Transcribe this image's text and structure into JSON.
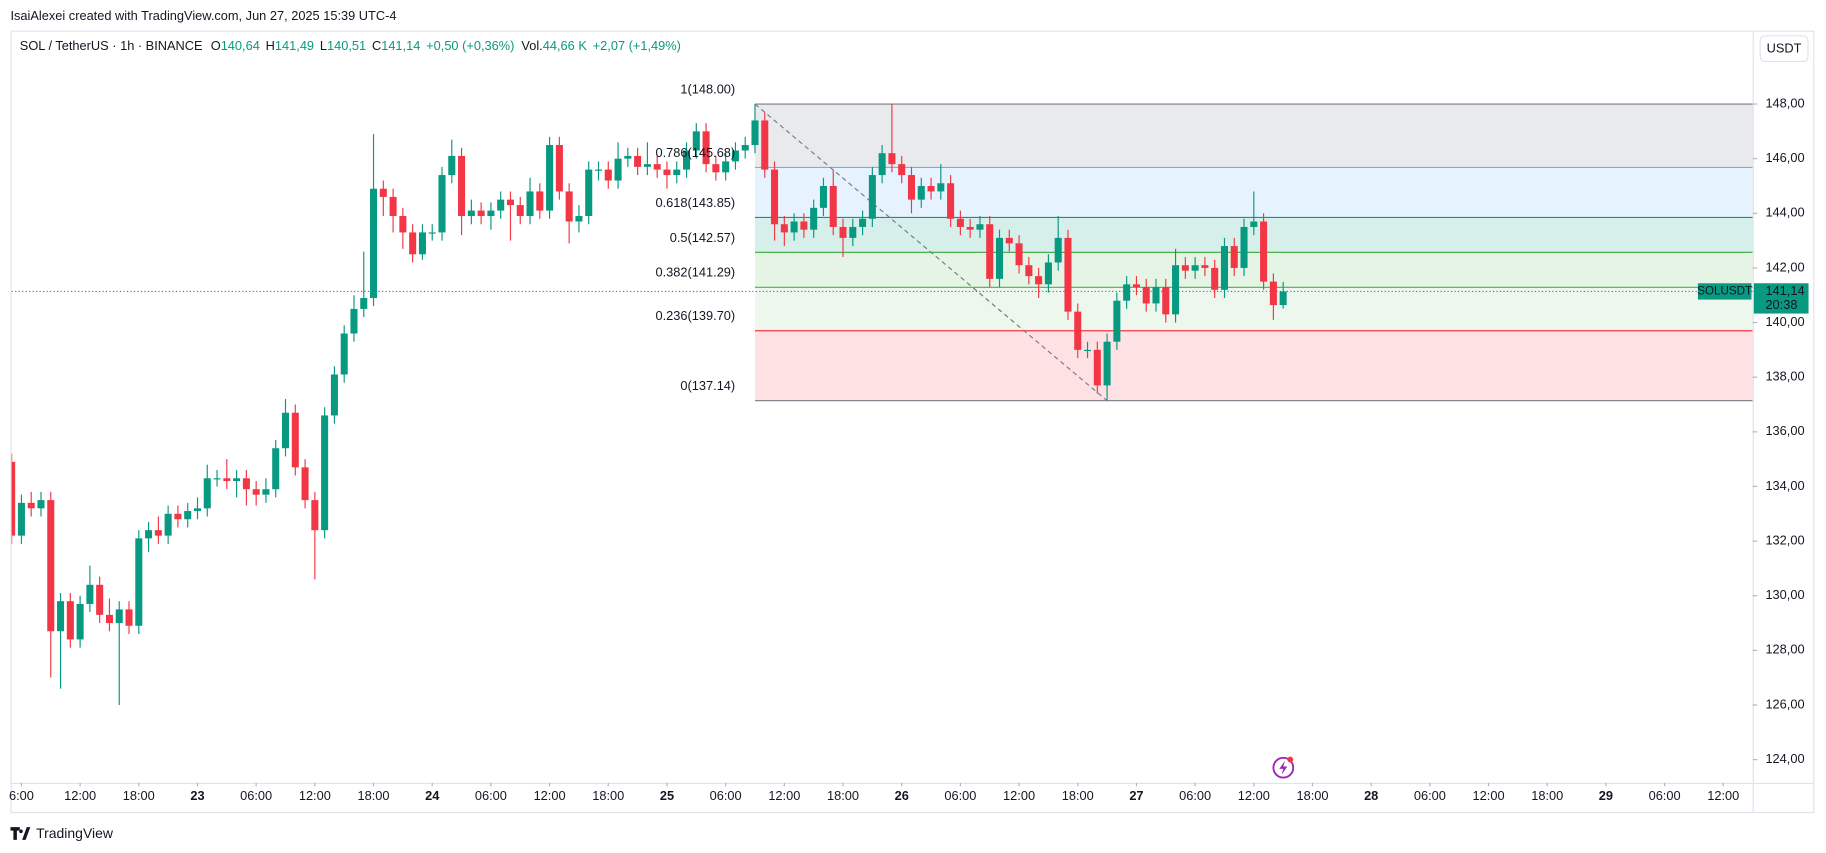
{
  "page_header": "IsaiAlexei created with TradingView.com, Jun 27, 2025 15:39 UTC-4",
  "footer": "TradingView",
  "currency_button": "USDT",
  "chart_data": {
    "type": "candlestick",
    "symbol": "SOL / TetherUS · 1h · BINANCE",
    "ohlc_legend": [
      {
        "key": "O",
        "value": "140,64"
      },
      {
        "key": "H",
        "value": "141,49"
      },
      {
        "key": "L",
        "value": "140,51"
      },
      {
        "key": "C",
        "value": "141,14"
      }
    ],
    "change": "+0,50 (+0,36%)",
    "volume": {
      "key": "Vol.",
      "value": "44,66 K",
      "change": "+2,07 (+1,49%)"
    },
    "up_color": "#089981",
    "down_color": "#f23645",
    "x": [
      5,
      6,
      7,
      8,
      9,
      10,
      11,
      12,
      13,
      14,
      15,
      16,
      17,
      18,
      19,
      20,
      21,
      22,
      23,
      24,
      25,
      26,
      27,
      28,
      29,
      30,
      31,
      32,
      33,
      34,
      35,
      36,
      37,
      38,
      39,
      40,
      41,
      42,
      43,
      44,
      45,
      46,
      47,
      48,
      49,
      50,
      51,
      52,
      53,
      54,
      55,
      56,
      57,
      58,
      59,
      60,
      61,
      62,
      63,
      64,
      65,
      66,
      67,
      68,
      69,
      70,
      71,
      72,
      73,
      74,
      75,
      76,
      77,
      78,
      79,
      80,
      81,
      82,
      83,
      84,
      85,
      86,
      87,
      88,
      89,
      90,
      91,
      92,
      93,
      94,
      95,
      96,
      97,
      98,
      99,
      100,
      101,
      102,
      103,
      104,
      105,
      106,
      107,
      108,
      109,
      110,
      111,
      112,
      113,
      114,
      115,
      116,
      117,
      118,
      119,
      120,
      121,
      122,
      123,
      124,
      125,
      126,
      127,
      128,
      129,
      130,
      131,
      132,
      133,
      134,
      135
    ],
    "open": [
      134.9,
      132.2,
      133.4,
      133.2,
      133.5,
      128.7,
      129.8,
      128.4,
      129.7,
      130.4,
      129.3,
      129.0,
      129.5,
      128.9,
      132.1,
      132.4,
      132.2,
      133.0,
      132.8,
      133.1,
      133.2,
      134.3,
      134.3,
      134.2,
      134.3,
      133.9,
      133.7,
      133.9,
      135.4,
      136.7,
      134.7,
      133.5,
      132.4,
      136.6,
      138.1,
      139.6,
      140.5,
      140.9,
      144.9,
      144.6,
      143.9,
      143.3,
      142.5,
      143.3,
      143.3,
      145.4,
      146.1,
      143.9,
      144.1,
      143.9,
      144.1,
      144.5,
      144.3,
      143.9,
      144.8,
      144.1,
      146.5,
      144.8,
      143.7,
      143.9,
      145.6,
      145.6,
      145.2,
      146.0,
      146.1,
      145.7,
      145.8,
      145.6,
      145.4,
      145.6,
      146.3,
      147.0,
      145.8,
      145.5,
      145.9,
      146.3,
      146.5,
      147.4,
      145.6,
      143.6,
      143.3,
      143.7,
      143.4,
      144.2,
      145.0,
      143.5,
      143.1,
      143.5,
      143.8,
      145.4,
      146.2,
      145.8,
      145.4,
      144.5,
      145.0,
      144.8,
      145.1,
      143.8,
      143.5,
      143.4,
      143.6,
      141.6,
      143.1,
      142.9,
      142.1,
      141.7,
      141.4,
      142.2,
      143.1,
      140.4,
      139.0,
      139.0,
      137.7,
      139.3,
      140.8,
      141.4,
      141.3,
      140.7,
      141.3,
      140.3,
      142.1,
      141.9,
      142.1,
      142.0,
      141.2,
      142.8,
      142.0,
      143.5,
      143.7,
      141.5,
      140.64
    ],
    "high": [
      135.2,
      133.7,
      133.8,
      133.8,
      133.8,
      130.1,
      130.1,
      130.0,
      131.1,
      130.7,
      129.9,
      129.8,
      129.8,
      132.4,
      132.7,
      132.9,
      133.3,
      133.3,
      133.4,
      133.6,
      134.8,
      134.6,
      135.0,
      134.6,
      134.6,
      134.2,
      134.3,
      135.7,
      137.2,
      137.0,
      135.0,
      133.8,
      136.9,
      138.4,
      139.9,
      141.0,
      142.6,
      146.9,
      145.2,
      144.9,
      144.2,
      143.6,
      143.6,
      143.6,
      145.7,
      146.7,
      146.4,
      144.5,
      144.4,
      144.4,
      144.8,
      144.8,
      144.6,
      145.3,
      145.1,
      146.8,
      146.8,
      145.1,
      144.3,
      145.9,
      145.9,
      145.9,
      146.6,
      146.4,
      146.4,
      146.6,
      146.1,
      145.9,
      145.9,
      146.6,
      147.3,
      147.3,
      146.1,
      146.2,
      146.6,
      146.8,
      148.0,
      147.7,
      145.9,
      143.9,
      144.0,
      144.0,
      144.5,
      145.3,
      145.6,
      143.8,
      143.8,
      144.1,
      145.7,
      146.5,
      148.0,
      146.1,
      145.7,
      145.3,
      145.3,
      145.8,
      145.4,
      144.1,
      143.8,
      143.9,
      143.9,
      143.4,
      143.4,
      143.2,
      142.4,
      142.0,
      142.5,
      143.9,
      143.4,
      140.7,
      139.3,
      139.3,
      139.6,
      141.1,
      141.7,
      141.7,
      141.6,
      141.6,
      141.6,
      142.7,
      142.4,
      142.4,
      142.4,
      142.3,
      143.1,
      143.1,
      143.8,
      144.8,
      144.0,
      141.8,
      141.49
    ],
    "low": [
      131.9,
      131.9,
      132.9,
      132.9,
      127.0,
      126.6,
      128.1,
      128.1,
      129.4,
      129.0,
      128.7,
      126.0,
      128.6,
      128.6,
      131.6,
      131.9,
      131.9,
      132.5,
      132.5,
      132.8,
      132.9,
      134.0,
      133.9,
      133.6,
      133.3,
      133.3,
      133.4,
      133.6,
      135.1,
      134.4,
      133.2,
      130.6,
      132.1,
      136.3,
      137.8,
      139.3,
      140.2,
      140.6,
      143.9,
      143.3,
      142.7,
      142.2,
      142.3,
      143.0,
      143.0,
      145.1,
      143.2,
      143.6,
      143.6,
      143.4,
      143.8,
      143.0,
      143.6,
      143.6,
      143.8,
      143.8,
      144.5,
      142.9,
      143.3,
      143.6,
      145.2,
      144.9,
      144.9,
      145.7,
      145.4,
      145.4,
      145.3,
      144.9,
      145.1,
      145.3,
      146.0,
      145.5,
      145.2,
      145.2,
      145.6,
      146.0,
      146.2,
      145.3,
      143.0,
      142.8,
      143.0,
      143.1,
      143.1,
      143.9,
      143.2,
      142.4,
      142.8,
      143.2,
      143.5,
      145.1,
      145.5,
      145.1,
      144.0,
      144.2,
      144.5,
      144.5,
      143.5,
      143.2,
      143.1,
      143.1,
      141.3,
      141.3,
      142.6,
      141.8,
      141.4,
      140.9,
      141.1,
      141.9,
      140.1,
      138.7,
      138.7,
      137.4,
      137.14,
      139.0,
      140.5,
      141.0,
      140.4,
      140.4,
      140.0,
      140.0,
      141.6,
      141.6,
      141.7,
      140.9,
      140.9,
      141.7,
      141.7,
      143.2,
      141.2,
      140.1,
      140.51
    ],
    "close": [
      132.2,
      133.4,
      133.2,
      133.5,
      128.7,
      129.8,
      128.4,
      129.7,
      130.4,
      129.3,
      129.0,
      129.5,
      128.9,
      132.1,
      132.4,
      132.2,
      133.0,
      132.8,
      133.1,
      133.2,
      134.3,
      134.3,
      134.2,
      134.3,
      133.9,
      133.7,
      133.9,
      135.4,
      136.7,
      134.7,
      133.5,
      132.4,
      136.6,
      138.1,
      139.6,
      140.5,
      140.9,
      144.9,
      144.6,
      143.9,
      143.3,
      142.5,
      143.3,
      143.3,
      145.4,
      146.1,
      143.9,
      144.1,
      143.9,
      144.1,
      144.5,
      144.3,
      143.9,
      144.8,
      144.1,
      146.5,
      144.8,
      143.7,
      143.9,
      145.6,
      145.6,
      145.2,
      146.0,
      146.1,
      145.7,
      145.8,
      145.6,
      145.4,
      145.6,
      146.3,
      147.0,
      145.8,
      145.5,
      145.9,
      146.3,
      146.5,
      147.4,
      145.6,
      143.6,
      143.3,
      143.7,
      143.4,
      144.2,
      145.0,
      143.5,
      143.1,
      143.5,
      143.8,
      145.4,
      146.2,
      145.8,
      145.4,
      144.5,
      145.0,
      144.8,
      145.1,
      143.8,
      143.5,
      143.4,
      143.6,
      141.6,
      143.1,
      142.9,
      142.1,
      141.7,
      141.4,
      142.2,
      143.1,
      140.4,
      139.0,
      139.0,
      137.7,
      139.3,
      140.8,
      141.4,
      141.3,
      140.7,
      141.3,
      140.3,
      142.1,
      141.9,
      142.1,
      142.0,
      141.2,
      142.8,
      142.0,
      143.5,
      143.7,
      141.5,
      140.64,
      141.14
    ],
    "xlim": [
      5,
      183
    ],
    "xticks": [
      {
        "value": 6,
        "label": "6:00"
      },
      {
        "value": 12,
        "label": "12:00"
      },
      {
        "value": 18,
        "label": "18:00"
      },
      {
        "value": 24,
        "label": "23"
      },
      {
        "value": 30,
        "label": "06:00"
      },
      {
        "value": 36,
        "label": "12:00"
      },
      {
        "value": 42,
        "label": "18:00"
      },
      {
        "value": 48,
        "label": "24"
      },
      {
        "value": 54,
        "label": "06:00"
      },
      {
        "value": 60,
        "label": "12:00"
      },
      {
        "value": 66,
        "label": "18:00"
      },
      {
        "value": 72,
        "label": "25"
      },
      {
        "value": 78,
        "label": "06:00"
      },
      {
        "value": 84,
        "label": "12:00"
      },
      {
        "value": 90,
        "label": "18:00"
      },
      {
        "value": 96,
        "label": "26"
      },
      {
        "value": 102,
        "label": "06:00"
      },
      {
        "value": 108,
        "label": "12:00"
      },
      {
        "value": 114,
        "label": "18:00"
      },
      {
        "value": 120,
        "label": "27"
      },
      {
        "value": 126,
        "label": "06:00"
      },
      {
        "value": 132,
        "label": "12:00"
      },
      {
        "value": 138,
        "label": "18:00"
      },
      {
        "value": 144,
        "label": "28"
      },
      {
        "value": 150,
        "label": "06:00"
      },
      {
        "value": 156,
        "label": "12:00"
      },
      {
        "value": 162,
        "label": "18:00"
      },
      {
        "value": 168,
        "label": "29"
      },
      {
        "value": 174,
        "label": "06:00"
      },
      {
        "value": 180,
        "label": "12:00"
      }
    ],
    "ylim": [
      123.15,
      150.69
    ],
    "yticks": [
      {
        "value": 124,
        "label": "124,00"
      },
      {
        "value": 126,
        "label": "126,00"
      },
      {
        "value": 128,
        "label": "128,00"
      },
      {
        "value": 130,
        "label": "130,00"
      },
      {
        "value": 132,
        "label": "132,00"
      },
      {
        "value": 134,
        "label": "134,00"
      },
      {
        "value": 136,
        "label": "136,00"
      },
      {
        "value": 138,
        "label": "138,00"
      },
      {
        "value": 140,
        "label": "140,00"
      },
      {
        "value": 142,
        "label": "142,00"
      },
      {
        "value": 144,
        "label": "144,00"
      },
      {
        "value": 146,
        "label": "146,00"
      },
      {
        "value": 148,
        "label": "148,00"
      }
    ],
    "price_label": {
      "symbol": "SOLUSDT",
      "value": 141.14,
      "label": "141,14",
      "countdown": "20:38",
      "color": "#089981"
    },
    "fib": {
      "levels": [
        {
          "value": 148.0,
          "label": "1(148.00)",
          "color": "#787b86",
          "fill": "rgba(120,123,134,0.16)"
        },
        {
          "value": 145.68,
          "label": "0.786(145.68)",
          "color": "#64b5f6",
          "fill": "rgba(100,181,246,0.16)"
        },
        {
          "value": 143.85,
          "label": "0.618(143.85)",
          "color": "#089981",
          "fill": "rgba(8,153,129,0.16)"
        },
        {
          "value": 142.57,
          "label": "0.5(142.57)",
          "color": "#4caf50",
          "fill": "rgba(76,175,80,0.14)"
        },
        {
          "value": 141.29,
          "label": "0.382(141.29)",
          "color": "#4caf50",
          "fill": "rgba(129,199,132,0.14)"
        },
        {
          "value": 139.7,
          "label": "0.236(139.70)",
          "color": "#f23645",
          "fill": "rgba(242,54,69,0.15)"
        },
        {
          "value": 137.14,
          "label": "0(137.14)",
          "color": "#787b86",
          "fill": "none"
        }
      ]
    }
  }
}
